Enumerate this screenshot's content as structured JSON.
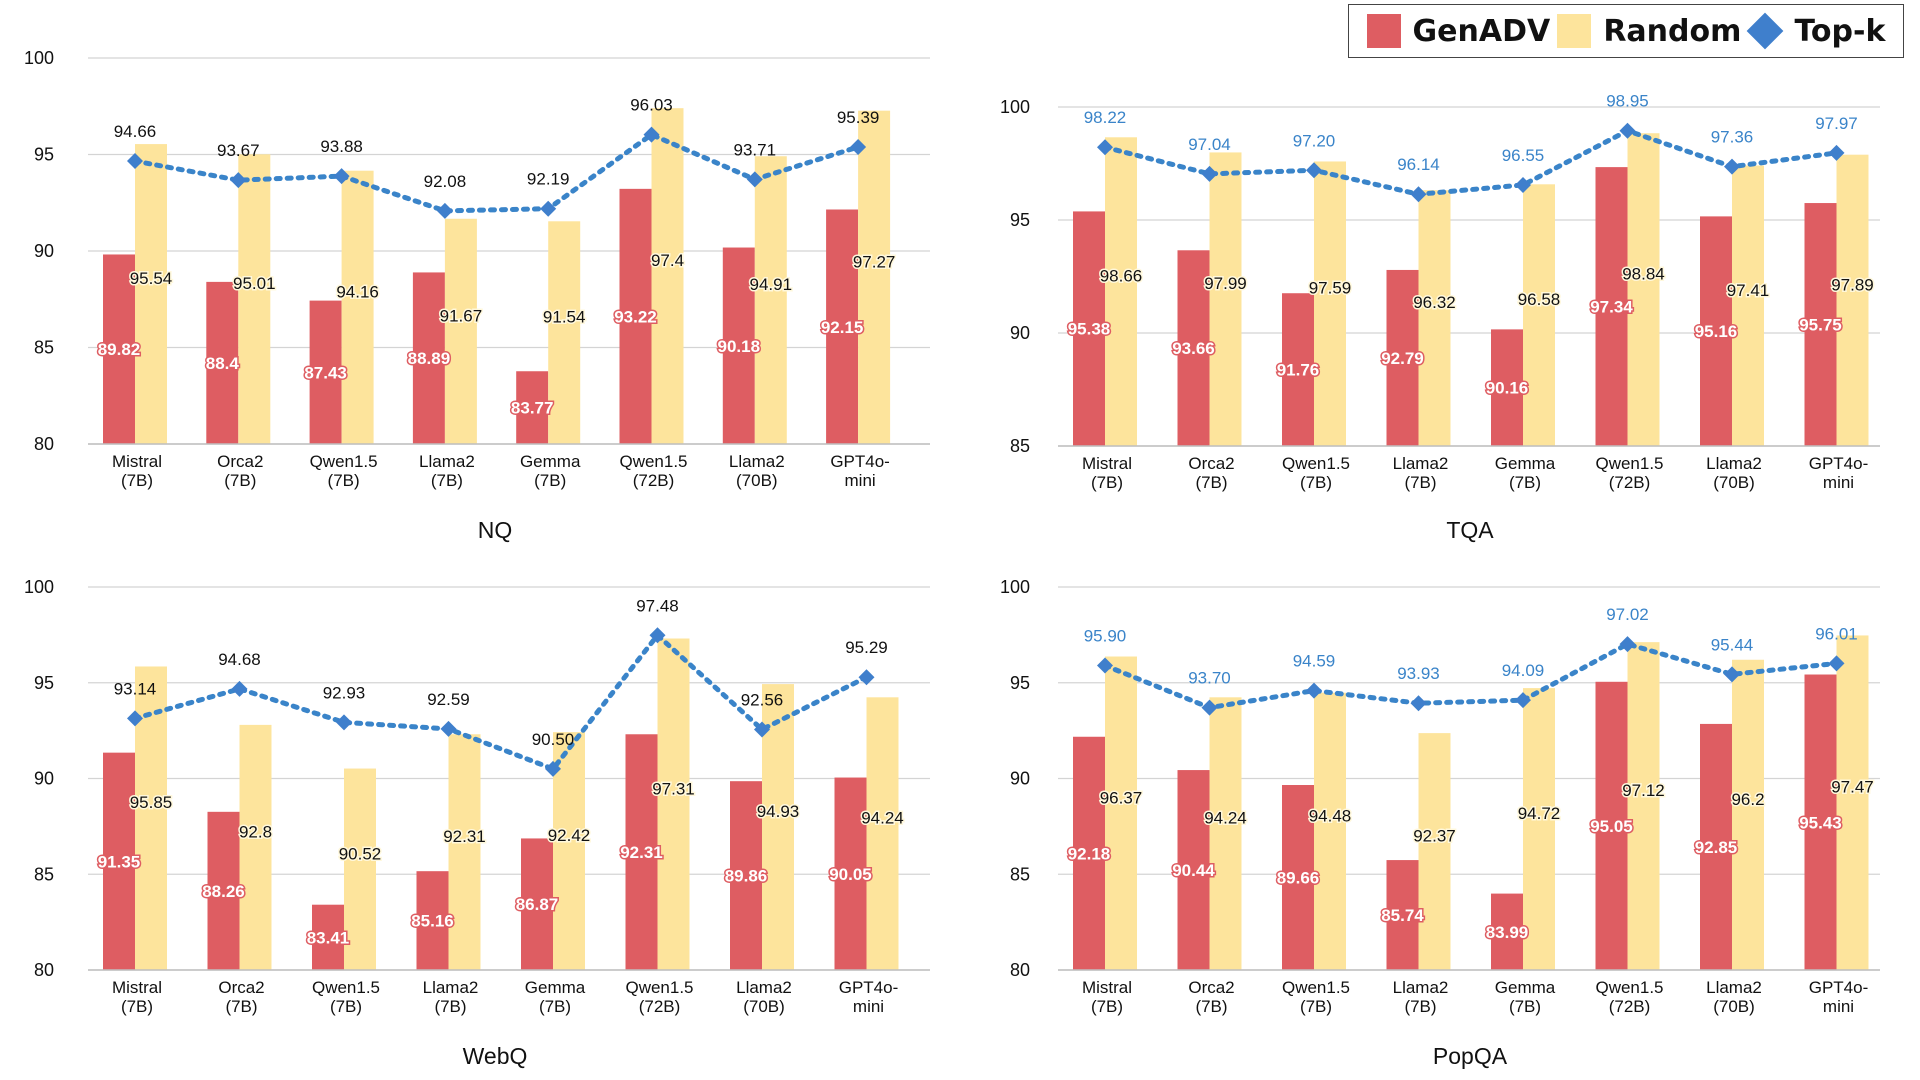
{
  "legend": {
    "genadv": "GenADV",
    "random": "Random",
    "topk": "Top-k"
  },
  "colors": {
    "genadv": "#de5d62",
    "random": "#fde49c",
    "topk_dark": "#3f7fcc",
    "topk_blue": "#3a84c9"
  },
  "chart_data": [
    {
      "type": "bar",
      "title": "NQ",
      "ylim": [
        80,
        100
      ],
      "yticks": [
        "80",
        "85",
        "90",
        "95",
        "100"
      ],
      "categories": [
        [
          "Mistral",
          "(7B)"
        ],
        [
          "Orca2",
          "(7B)"
        ],
        [
          "Qwen1.5",
          "(7B)"
        ],
        [
          "Llama2",
          "(7B)"
        ],
        [
          "Gemma",
          "(7B)"
        ],
        [
          "Qwen1.5",
          "(72B)"
        ],
        [
          "Llama2",
          "(70B)"
        ],
        [
          "GPT4o-",
          "mini"
        ]
      ],
      "series": [
        {
          "name": "GenADV",
          "values": [
            89.82,
            88.4,
            87.43,
            88.89,
            83.77,
            93.22,
            90.18,
            92.15
          ],
          "labels": [
            "89.82",
            "88.4",
            "87.43",
            "88.89",
            "83.77",
            "93.22",
            "90.18",
            "92.15"
          ]
        },
        {
          "name": "Random",
          "values": [
            95.54,
            95.01,
            94.16,
            91.67,
            91.54,
            97.4,
            94.91,
            97.27
          ],
          "labels": [
            "95.54",
            "95.01",
            "94.16",
            "91.67",
            "91.54",
            "97.4",
            "94.91",
            "97.27"
          ]
        },
        {
          "name": "Top-k",
          "values": [
            94.66,
            93.67,
            93.88,
            92.08,
            92.19,
            96.03,
            93.71,
            95.39
          ],
          "labels": [
            "94.66",
            "93.67",
            "93.88",
            "92.08",
            "92.19",
            "96.03",
            "93.71",
            "95.39"
          ],
          "label_color": "dark"
        }
      ]
    },
    {
      "type": "bar",
      "title": "TQA",
      "ylim": [
        85,
        100
      ],
      "yticks": [
        "85",
        "90",
        "95",
        "100"
      ],
      "categories": [
        [
          "Mistral",
          "(7B)"
        ],
        [
          "Orca2",
          "(7B)"
        ],
        [
          "Qwen1.5",
          "(7B)"
        ],
        [
          "Llama2",
          "(7B)"
        ],
        [
          "Gemma",
          "(7B)"
        ],
        [
          "Qwen1.5",
          "(72B)"
        ],
        [
          "Llama2",
          "(70B)"
        ],
        [
          "GPT4o-",
          "mini"
        ]
      ],
      "series": [
        {
          "name": "GenADV",
          "values": [
            95.38,
            93.66,
            91.76,
            92.79,
            90.16,
            97.34,
            95.16,
            95.75
          ],
          "labels": [
            "95.38",
            "93.66",
            "91.76",
            "92.79",
            "90.16",
            "97.34",
            "95.16",
            "95.75"
          ]
        },
        {
          "name": "Random",
          "values": [
            98.66,
            97.99,
            97.59,
            96.32,
            96.58,
            98.84,
            97.41,
            97.89
          ],
          "labels": [
            "98.66",
            "97.99",
            "97.59",
            "96.32",
            "96.58",
            "98.84",
            "97.41",
            "97.89"
          ]
        },
        {
          "name": "Top-k",
          "values": [
            98.22,
            97.04,
            97.2,
            96.14,
            96.55,
            98.95,
            97.36,
            97.97
          ],
          "labels": [
            "98.22",
            "97.04",
            "97.20",
            "96.14",
            "96.55",
            "98.95",
            "97.36",
            "97.97"
          ],
          "label_color": "blue"
        }
      ]
    },
    {
      "type": "bar",
      "title": "WebQ",
      "ylim": [
        80,
        100
      ],
      "yticks": [
        "80",
        "85",
        "90",
        "95",
        "100"
      ],
      "categories": [
        [
          "Mistral",
          "(7B)"
        ],
        [
          "Orca2",
          "(7B)"
        ],
        [
          "Qwen1.5",
          "(7B)"
        ],
        [
          "Llama2",
          "(7B)"
        ],
        [
          "Gemma",
          "(7B)"
        ],
        [
          "Qwen1.5",
          "(72B)"
        ],
        [
          "Llama2",
          "(70B)"
        ],
        [
          "GPT4o-",
          "mini"
        ]
      ],
      "series": [
        {
          "name": "GenADV",
          "values": [
            91.35,
            88.26,
            83.41,
            85.16,
            86.87,
            92.31,
            89.86,
            90.05
          ],
          "labels": [
            "91.35",
            "88.26",
            "83.41",
            "85.16",
            "86.87",
            "92.31",
            "89.86",
            "90.05"
          ]
        },
        {
          "name": "Random",
          "values": [
            95.85,
            92.8,
            90.52,
            92.31,
            92.42,
            97.31,
            94.93,
            94.24
          ],
          "labels": [
            "95.85",
            "92.8",
            "90.52",
            "92.31",
            "92.42",
            "97.31",
            "94.93",
            "94.24"
          ]
        },
        {
          "name": "Top-k",
          "values": [
            93.14,
            94.68,
            92.93,
            92.59,
            90.5,
            97.48,
            92.56,
            95.29
          ],
          "labels": [
            "93.14",
            "94.68",
            "92.93",
            "92.59",
            "90.50",
            "97.48",
            "92.56",
            "95.29"
          ],
          "label_color": "dark"
        }
      ]
    },
    {
      "type": "bar",
      "title": "PopQA",
      "ylim": [
        80,
        100
      ],
      "yticks": [
        "80",
        "85",
        "90",
        "95",
        "100"
      ],
      "categories": [
        [
          "Mistral",
          "(7B)"
        ],
        [
          "Orca2",
          "(7B)"
        ],
        [
          "Qwen1.5",
          "(7B)"
        ],
        [
          "Llama2",
          "(7B)"
        ],
        [
          "Gemma",
          "(7B)"
        ],
        [
          "Qwen1.5",
          "(72B)"
        ],
        [
          "Llama2",
          "(70B)"
        ],
        [
          "GPT4o-",
          "mini"
        ]
      ],
      "series": [
        {
          "name": "GenADV",
          "values": [
            92.18,
            90.44,
            89.66,
            85.74,
            83.99,
            95.05,
            92.85,
            95.43
          ],
          "labels": [
            "92.18",
            "90.44",
            "89.66",
            "85.74",
            "83.99",
            "95.05",
            "92.85",
            "95.43"
          ]
        },
        {
          "name": "Random",
          "values": [
            96.37,
            94.24,
            94.48,
            92.37,
            94.72,
            97.12,
            96.2,
            97.47
          ],
          "labels": [
            "96.37",
            "94.24",
            "94.48",
            "92.37",
            "94.72",
            "97.12",
            "96.2",
            "97.47"
          ]
        },
        {
          "name": "Top-k",
          "values": [
            95.9,
            93.7,
            94.59,
            93.93,
            94.09,
            97.02,
            95.44,
            96.01
          ],
          "labels": [
            "95.90",
            "93.70",
            "94.59",
            "93.93",
            "94.09",
            "97.02",
            "95.44",
            "96.01"
          ],
          "label_color": "blue"
        }
      ]
    }
  ]
}
